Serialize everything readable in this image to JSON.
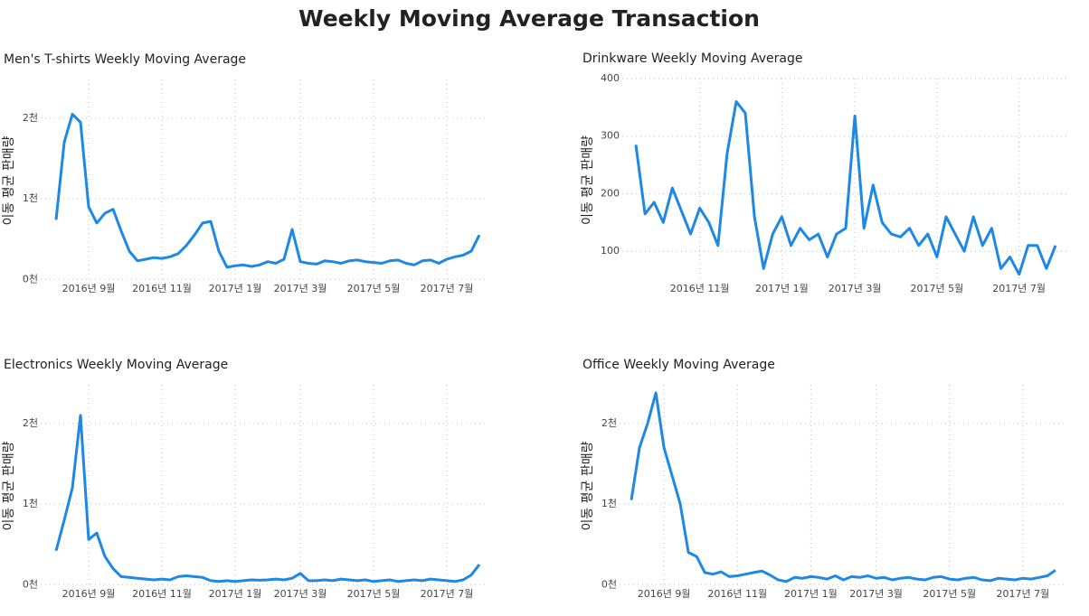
{
  "title": "Weekly Moving Average Transaction",
  "chart_data": [
    {
      "type": "line",
      "title": "Men's T-shirts Weekly Moving Average",
      "y_label": "이동 평균 판매량",
      "color": "#1e88e5",
      "grid": true,
      "categories": [
        null,
        null,
        null,
        null,
        "2016년 9월",
        null,
        null,
        null,
        null,
        null,
        null,
        null,
        null,
        "2016년 11월",
        null,
        null,
        null,
        null,
        null,
        null,
        null,
        null,
        "2017년 1월",
        null,
        null,
        null,
        null,
        null,
        null,
        null,
        "2017년 3월",
        null,
        null,
        null,
        null,
        null,
        null,
        null,
        null,
        "2017년 5월",
        null,
        null,
        null,
        null,
        null,
        null,
        null,
        null,
        "2017년 7월",
        null,
        null,
        null,
        null
      ],
      "values": [
        740,
        1700,
        2050,
        1950,
        900,
        700,
        820,
        870,
        600,
        350,
        230,
        250,
        270,
        260,
        280,
        320,
        420,
        550,
        700,
        720,
        350,
        150,
        170,
        180,
        160,
        180,
        220,
        200,
        250,
        620,
        220,
        200,
        190,
        230,
        220,
        200,
        230,
        240,
        220,
        210,
        200,
        230,
        240,
        200,
        180,
        230,
        240,
        200,
        250,
        280,
        300,
        350,
        550
      ],
      "ylim": [
        -30,
        2480
      ],
      "yticks": [
        {
          "value": 0,
          "label": "0천"
        },
        {
          "value": 1000,
          "label": "1천"
        },
        {
          "value": 2000,
          "label": "2천"
        }
      ]
    },
    {
      "type": "line",
      "title": "Drinkware Weekly Moving Average",
      "y_label": "이동 평균 판매량",
      "color": "#1e88e5",
      "grid": true,
      "categories": [
        null,
        null,
        null,
        null,
        null,
        null,
        null,
        "2016년 11월",
        null,
        null,
        null,
        null,
        null,
        null,
        null,
        null,
        "2017년 1월",
        null,
        null,
        null,
        null,
        null,
        null,
        null,
        "2017년 3월",
        null,
        null,
        null,
        null,
        null,
        null,
        null,
        null,
        "2017년 5월",
        null,
        null,
        null,
        null,
        null,
        null,
        null,
        null,
        "2017년 7월",
        null,
        null,
        null,
        null
      ],
      "values": [
        285,
        165,
        185,
        150,
        210,
        170,
        130,
        175,
        150,
        110,
        270,
        360,
        340,
        160,
        70,
        130,
        160,
        110,
        140,
        120,
        130,
        90,
        130,
        140,
        335,
        140,
        215,
        150,
        130,
        125,
        140,
        110,
        130,
        90,
        160,
        130,
        100,
        160,
        110,
        140,
        70,
        90,
        60,
        110,
        110,
        70,
        110
      ],
      "ylim": [
        47,
        400
      ],
      "yticks": [
        100,
        200,
        300,
        400
      ]
    },
    {
      "type": "line",
      "title": "Electronics Weekly Moving Average",
      "y_label": "이동 평균 판매량",
      "color": "#1e88e5",
      "grid": true,
      "categories": [
        null,
        null,
        null,
        null,
        "2016년 9월",
        null,
        null,
        null,
        null,
        null,
        null,
        null,
        null,
        "2016년 11월",
        null,
        null,
        null,
        null,
        null,
        null,
        null,
        null,
        "2017년 1월",
        null,
        null,
        null,
        null,
        null,
        null,
        null,
        "2017년 3월",
        null,
        null,
        null,
        null,
        null,
        null,
        null,
        null,
        "2017년 5월",
        null,
        null,
        null,
        null,
        null,
        null,
        null,
        null,
        "2017년 7월",
        null,
        null,
        null,
        null
      ],
      "values": [
        420,
        800,
        1200,
        2100,
        560,
        640,
        350,
        200,
        100,
        90,
        80,
        70,
        60,
        70,
        60,
        100,
        110,
        100,
        90,
        50,
        40,
        50,
        40,
        50,
        60,
        55,
        60,
        70,
        60,
        80,
        140,
        50,
        50,
        60,
        50,
        70,
        60,
        50,
        60,
        40,
        50,
        60,
        40,
        50,
        60,
        50,
        70,
        60,
        50,
        40,
        60,
        120,
        250
      ],
      "ylim": [
        -30,
        2480
      ],
      "yticks": [
        {
          "value": 0,
          "label": "0천"
        },
        {
          "value": 1000,
          "label": "1천"
        },
        {
          "value": 2000,
          "label": "2천"
        }
      ]
    },
    {
      "type": "line",
      "title": "Office Weekly Moving Average",
      "y_label": "이동 평균 판매량",
      "color": "#1e88e5",
      "grid": true,
      "categories": [
        null,
        null,
        null,
        null,
        "2016년 9월",
        null,
        null,
        null,
        null,
        null,
        null,
        null,
        null,
        "2016년 11월",
        null,
        null,
        null,
        null,
        null,
        null,
        null,
        null,
        "2017년 1월",
        null,
        null,
        null,
        null,
        null,
        null,
        null,
        "2017년 3월",
        null,
        null,
        null,
        null,
        null,
        null,
        null,
        null,
        "2017년 5월",
        null,
        null,
        null,
        null,
        null,
        null,
        null,
        null,
        "2017년 7월",
        null,
        null,
        null,
        null
      ],
      "values": [
        1050,
        1700,
        2000,
        2380,
        1700,
        1350,
        1000,
        400,
        350,
        150,
        130,
        160,
        100,
        110,
        130,
        150,
        170,
        120,
        60,
        40,
        90,
        80,
        100,
        90,
        70,
        110,
        60,
        100,
        90,
        110,
        80,
        90,
        60,
        80,
        90,
        70,
        60,
        90,
        100,
        70,
        60,
        80,
        90,
        60,
        50,
        80,
        70,
        60,
        80,
        70,
        90,
        110,
        180
      ],
      "ylim": [
        -30,
        2480
      ],
      "yticks": [
        {
          "value": 0,
          "label": "0천"
        },
        {
          "value": 1000,
          "label": "1천"
        },
        {
          "value": 2000,
          "label": "2천"
        }
      ]
    }
  ]
}
